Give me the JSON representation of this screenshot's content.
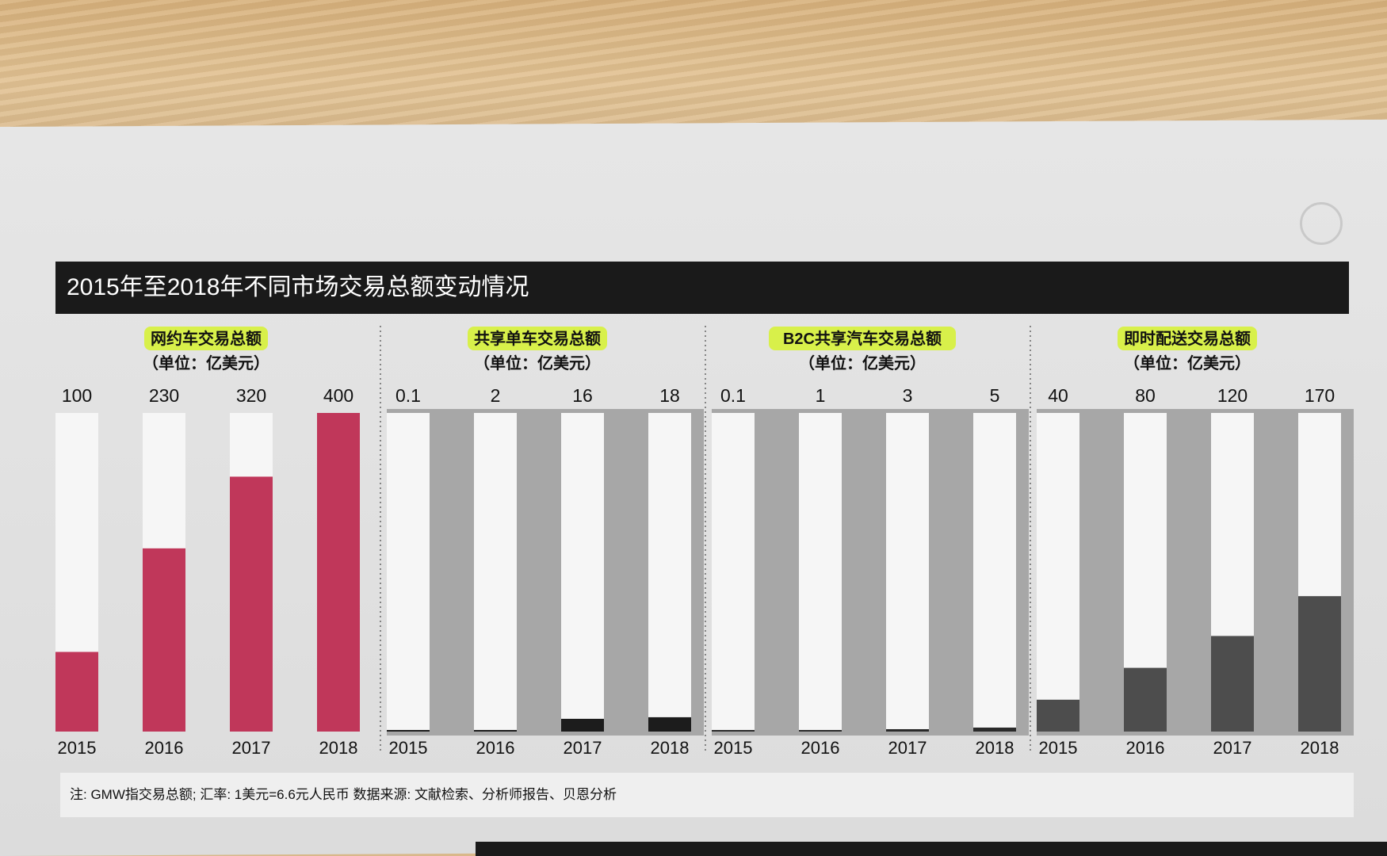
{
  "title": "2015年至2018年不同市场交易总额变动情况",
  "note": "注: GMW指交易总额; 汇率: 1美元=6.6元人民币   数据来源: 文献检索、分析师报告、贝恩分析",
  "colors": {
    "ride_hailing": "#c0375a",
    "bike_sharing": "#1c1c1c",
    "b2c_car_sharing": "#2a2a2a",
    "instant_delivery": "#4d4d4d",
    "bar_background": "#f6f6f6",
    "highlight": "#d8f04a",
    "panel_gray": "#a7a7a7"
  },
  "chart_data": [
    {
      "type": "bar",
      "title": "网约车交易总额",
      "subtitle": "（单位：亿美元）",
      "categories": [
        "2015",
        "2016",
        "2017",
        "2018"
      ],
      "values": [
        100,
        230,
        320,
        400
      ],
      "value_labels": [
        "100",
        "230",
        "320",
        "400"
      ],
      "ylim": [
        0,
        400
      ],
      "color_key": "ride_hailing"
    },
    {
      "type": "bar",
      "title": "共享单车交易总额",
      "subtitle": "（单位：亿美元）",
      "categories": [
        "2015",
        "2016",
        "2017",
        "2018"
      ],
      "values": [
        0.1,
        2,
        16,
        18
      ],
      "value_labels": [
        "0.1",
        "2",
        "16",
        "18"
      ],
      "ylim": [
        0,
        400
      ],
      "color_key": "bike_sharing"
    },
    {
      "type": "bar",
      "title": "B2C共享汽车交易总额",
      "subtitle": "（单位：亿美元）",
      "categories": [
        "2015",
        "2016",
        "2017",
        "2018"
      ],
      "values": [
        0.1,
        1,
        3,
        5
      ],
      "value_labels": [
        "0.1",
        "1",
        "3",
        "5"
      ],
      "ylim": [
        0,
        400
      ],
      "color_key": "b2c_car_sharing"
    },
    {
      "type": "bar",
      "title": "即时配送交易总额",
      "subtitle": "（单位：亿美元）",
      "categories": [
        "2015",
        "2016",
        "2017",
        "2018"
      ],
      "values": [
        40,
        80,
        120,
        170
      ],
      "value_labels": [
        "40",
        "80",
        "120",
        "170"
      ],
      "ylim": [
        0,
        400
      ],
      "color_key": "instant_delivery"
    }
  ]
}
